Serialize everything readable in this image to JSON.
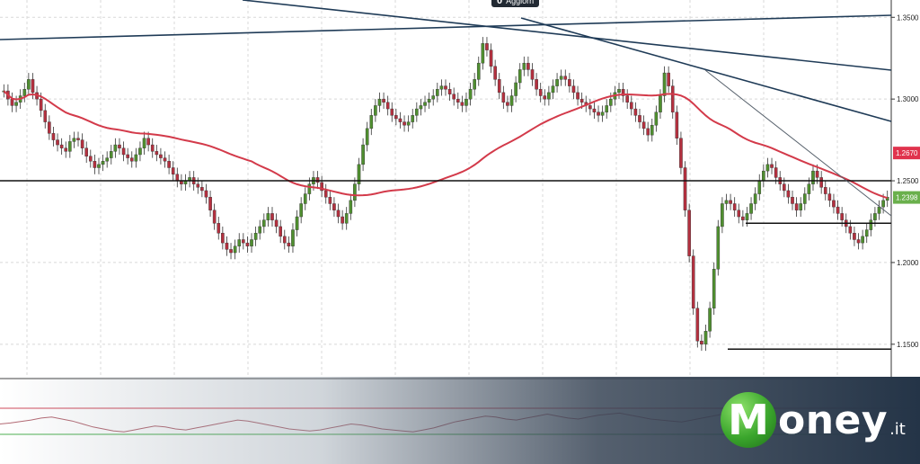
{
  "chart_data": {
    "type": "candlestick",
    "title": "",
    "ylim": [
      1.14,
      1.365
    ],
    "y_ticks": [
      "1.3500",
      "1.3000",
      "1.2500",
      "1.2000",
      "1.1500"
    ],
    "y_tick_values": [
      1.35,
      1.3,
      1.25,
      1.2,
      1.15
    ],
    "price_labels": [
      {
        "text": "1.2670",
        "value": 1.267,
        "color": "#e0334d"
      },
      {
        "text": "1.2398",
        "value": 1.2398,
        "color": "#6ab04c"
      }
    ],
    "horizontal_levels": [
      1.25,
      1.224,
      1.147
    ],
    "moving_average_color": "#d33a4a",
    "bull_color": "#4f8f2f",
    "bear_color": "#b4303f",
    "candles_close": [
      1.305,
      1.3,
      1.296,
      1.298,
      1.302,
      1.306,
      1.312,
      1.304,
      1.3,
      1.293,
      1.286,
      1.279,
      1.275,
      1.272,
      1.27,
      1.268,
      1.274,
      1.276,
      1.275,
      1.27,
      1.265,
      1.262,
      1.258,
      1.26,
      1.262,
      1.264,
      1.268,
      1.272,
      1.27,
      1.266,
      1.264,
      1.262,
      1.266,
      1.27,
      1.276,
      1.272,
      1.268,
      1.266,
      1.264,
      1.262,
      1.258,
      1.254,
      1.25,
      1.248,
      1.25,
      1.252,
      1.248,
      1.246,
      1.244,
      1.24,
      1.232,
      1.224,
      1.218,
      1.212,
      1.208,
      1.206,
      1.21,
      1.214,
      1.212,
      1.21,
      1.214,
      1.218,
      1.222,
      1.226,
      1.23,
      1.226,
      1.222,
      1.216,
      1.212,
      1.21,
      1.22,
      1.228,
      1.236,
      1.242,
      1.248,
      1.252,
      1.249,
      1.244,
      1.24,
      1.236,
      1.232,
      1.228,
      1.224,
      1.23,
      1.238,
      1.248,
      1.26,
      1.272,
      1.282,
      1.29,
      1.296,
      1.3,
      1.298,
      1.294,
      1.29,
      1.288,
      1.286,
      1.284,
      1.286,
      1.29,
      1.294,
      1.296,
      1.298,
      1.3,
      1.302,
      1.306,
      1.308,
      1.306,
      1.303,
      1.3,
      1.298,
      1.296,
      1.3,
      1.306,
      1.312,
      1.322,
      1.334,
      1.33,
      1.32,
      1.312,
      1.304,
      1.298,
      1.296,
      1.302,
      1.31,
      1.318,
      1.322,
      1.318,
      1.312,
      1.306,
      1.302,
      1.3,
      1.304,
      1.308,
      1.312,
      1.314,
      1.312,
      1.308,
      1.304,
      1.3,
      1.298,
      1.296,
      1.294,
      1.292,
      1.29,
      1.292,
      1.296,
      1.3,
      1.304,
      1.306,
      1.302,
      1.298,
      1.294,
      1.29,
      1.286,
      1.282,
      1.278,
      1.284,
      1.292,
      1.302,
      1.316,
      1.308,
      1.292,
      1.276,
      1.258,
      1.232,
      1.204,
      1.172,
      1.152,
      1.15,
      1.158,
      1.172,
      1.196,
      1.222,
      1.236,
      1.238,
      1.236,
      1.232,
      1.228,
      1.226,
      1.23,
      1.236,
      1.242,
      1.25,
      1.256,
      1.26,
      1.258,
      1.252,
      1.248,
      1.244,
      1.24,
      1.236,
      1.232,
      1.236,
      1.242,
      1.248,
      1.256,
      1.252,
      1.246,
      1.242,
      1.238,
      1.234,
      1.23,
      1.226,
      1.222,
      1.218,
      1.214,
      1.212,
      1.216,
      1.22,
      1.226,
      1.23,
      1.234,
      1.238,
      1.24
    ],
    "oscillator": {
      "upper_level_color": "#d04a5a",
      "lower_level_color": "#4caf50",
      "values": [
        50,
        52,
        55,
        58,
        62,
        64,
        60,
        56,
        50,
        44,
        40,
        36,
        34,
        38,
        42,
        46,
        44,
        40,
        38,
        42,
        46,
        50,
        54,
        58,
        56,
        52,
        48,
        44,
        40,
        38,
        36,
        38,
        42,
        46,
        50,
        48,
        44,
        40,
        38,
        36,
        34,
        38,
        42,
        48,
        54,
        58,
        62,
        66,
        64,
        60,
        58,
        62,
        66,
        70,
        66,
        62,
        60,
        64,
        68,
        70,
        72,
        68,
        64,
        60,
        58,
        56,
        54,
        58,
        62,
        66,
        70,
        68,
        64,
        60,
        56,
        52,
        48,
        44,
        42,
        46,
        50,
        54,
        52,
        48,
        46,
        50,
        54,
        56
      ]
    },
    "grid": true
  },
  "tag": {
    "count": "0",
    "label": "Aggiorn"
  },
  "logo": {
    "letter": "M",
    "word": "oney",
    "tld": ".it"
  }
}
